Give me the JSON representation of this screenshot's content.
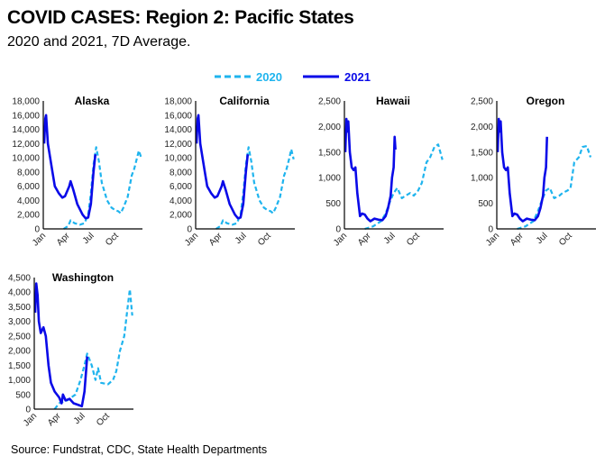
{
  "title": "COVID CASES: Region 2: Pacific States",
  "subtitle": "2020 and 2021, 7D Average.",
  "source": "Source: Fundstrat, CDC, State Health Departments",
  "legend": {
    "placement": "top-center",
    "items": [
      {
        "name": "2020",
        "color": "#1fb4ee",
        "style": "dashed"
      },
      {
        "name": "2021",
        "color": "#0a0ae8",
        "style": "solid"
      }
    ]
  },
  "chart_data": [
    {
      "type": "line",
      "title": "Alaska",
      "ylim": [
        0,
        18000
      ],
      "yticks": [
        "0",
        "2,000",
        "4,000",
        "6,000",
        "8,000",
        "10,000",
        "12,000",
        "14,000",
        "16,000",
        "18,000"
      ],
      "ytick_values": [
        0,
        2000,
        4000,
        6000,
        8000,
        10000,
        12000,
        14000,
        16000,
        18000
      ],
      "xticks": [
        "Jan",
        "Apr",
        "Jul",
        "Oct"
      ],
      "grid": false,
      "series": [
        {
          "name": "2020",
          "points": [
            [
              "03-15",
              0
            ],
            [
              "04-01",
              400
            ],
            [
              "04-10",
              1200
            ],
            [
              "04-25",
              800
            ],
            [
              "05-15",
              600
            ],
            [
              "06-01",
              800
            ],
            [
              "06-15",
              2000
            ],
            [
              "06-25",
              5000
            ],
            [
              "07-05",
              9000
            ],
            [
              "07-15",
              11500
            ],
            [
              "07-25",
              9500
            ],
            [
              "08-05",
              6500
            ],
            [
              "08-25",
              4000
            ],
            [
              "09-10",
              3000
            ],
            [
              "09-25",
              2600
            ],
            [
              "10-05",
              2500
            ],
            [
              "10-15",
              2200
            ],
            [
              "10-25",
              3000
            ],
            [
              "11-10",
              4500
            ],
            [
              "11-25",
              7500
            ],
            [
              "12-05",
              8500
            ],
            [
              "12-15",
              10000
            ],
            [
              "12-22",
              11000
            ],
            [
              "12-31",
              10000
            ]
          ]
        },
        {
          "name": "2021",
          "points": [
            [
              "01-01",
              12000
            ],
            [
              "01-05",
              15500
            ],
            [
              "01-08",
              16000
            ],
            [
              "01-15",
              12000
            ],
            [
              "02-01",
              8000
            ],
            [
              "02-10",
              6000
            ],
            [
              "02-25",
              5000
            ],
            [
              "03-10",
              4400
            ],
            [
              "03-20",
              4600
            ],
            [
              "04-05",
              6000
            ],
            [
              "04-10",
              6700
            ],
            [
              "04-20",
              5500
            ],
            [
              "05-05",
              3500
            ],
            [
              "05-25",
              2000
            ],
            [
              "06-05",
              1500
            ],
            [
              "06-15",
              1600
            ],
            [
              "06-25",
              3500
            ],
            [
              "07-05",
              8000
            ],
            [
              "07-12",
              10500
            ]
          ]
        }
      ]
    },
    {
      "type": "line",
      "title": "California",
      "ylim": [
        0,
        18000
      ],
      "yticks": [
        "0",
        "2,000",
        "4,000",
        "6,000",
        "8,000",
        "10,000",
        "12,000",
        "14,000",
        "16,000",
        "18,000"
      ],
      "ytick_values": [
        0,
        2000,
        4000,
        6000,
        8000,
        10000,
        12000,
        14000,
        16000,
        18000
      ],
      "xticks": [
        "Jan",
        "Apr",
        "Jul",
        "Oct"
      ],
      "grid": false,
      "series": [
        {
          "name": "2020",
          "points": [
            [
              "03-15",
              0
            ],
            [
              "04-01",
              400
            ],
            [
              "04-10",
              1200
            ],
            [
              "04-25",
              800
            ],
            [
              "05-15",
              600
            ],
            [
              "06-01",
              800
            ],
            [
              "06-15",
              2000
            ],
            [
              "06-25",
              5000
            ],
            [
              "07-05",
              9000
            ],
            [
              "07-15",
              11500
            ],
            [
              "07-25",
              9500
            ],
            [
              "08-05",
              6500
            ],
            [
              "08-25",
              4000
            ],
            [
              "09-10",
              3000
            ],
            [
              "09-25",
              2600
            ],
            [
              "10-05",
              2500
            ],
            [
              "10-15",
              2200
            ],
            [
              "10-25",
              3000
            ],
            [
              "11-10",
              4500
            ],
            [
              "11-25",
              7500
            ],
            [
              "12-05",
              8500
            ],
            [
              "12-15",
              10000
            ],
            [
              "12-22",
              11200
            ],
            [
              "12-31",
              9800
            ]
          ]
        },
        {
          "name": "2021",
          "points": [
            [
              "01-01",
              12000
            ],
            [
              "01-05",
              15500
            ],
            [
              "01-08",
              16000
            ],
            [
              "01-15",
              12000
            ],
            [
              "02-01",
              8000
            ],
            [
              "02-10",
              6000
            ],
            [
              "02-25",
              5000
            ],
            [
              "03-10",
              4400
            ],
            [
              "03-20",
              4600
            ],
            [
              "04-05",
              6000
            ],
            [
              "04-10",
              6700
            ],
            [
              "04-20",
              5500
            ],
            [
              "05-05",
              3500
            ],
            [
              "05-25",
              2000
            ],
            [
              "06-05",
              1500
            ],
            [
              "06-15",
              1600
            ],
            [
              "06-25",
              3500
            ],
            [
              "07-05",
              8000
            ],
            [
              "07-12",
              10500
            ]
          ]
        }
      ]
    },
    {
      "type": "line",
      "title": "Hawaii",
      "ylim": [
        0,
        2500
      ],
      "yticks": [
        "0",
        "500",
        "1,000",
        "1,500",
        "2,000",
        "2,500"
      ],
      "ytick_values": [
        0,
        500,
        1000,
        1500,
        2000,
        2500
      ],
      "xticks": [
        "Jan",
        "Apr",
        "Jul",
        "Oct"
      ],
      "grid": false,
      "series": [
        {
          "name": "2020",
          "points": [
            [
              "03-15",
              0
            ],
            [
              "04-15",
              50
            ],
            [
              "05-15",
              150
            ],
            [
              "06-01",
              300
            ],
            [
              "06-15",
              500
            ],
            [
              "07-01",
              700
            ],
            [
              "07-15",
              800
            ],
            [
              "08-01",
              600
            ],
            [
              "08-15",
              650
            ],
            [
              "09-01",
              700
            ],
            [
              "09-15",
              650
            ],
            [
              "10-01",
              750
            ],
            [
              "10-15",
              900
            ],
            [
              "11-01",
              1300
            ],
            [
              "11-15",
              1400
            ],
            [
              "12-01",
              1600
            ],
            [
              "12-15",
              1650
            ],
            [
              "12-31",
              1350
            ]
          ]
        },
        {
          "name": "2021",
          "points": [
            [
              "01-01",
              1500
            ],
            [
              "01-05",
              2150
            ],
            [
              "01-08",
              1900
            ],
            [
              "01-12",
              2100
            ],
            [
              "01-18",
              1500
            ],
            [
              "01-25",
              1200
            ],
            [
              "02-01",
              1150
            ],
            [
              "02-08",
              1200
            ],
            [
              "02-15",
              700
            ],
            [
              "02-25",
              250
            ],
            [
              "03-05",
              300
            ],
            [
              "03-15",
              280
            ],
            [
              "03-25",
              200
            ],
            [
              "04-05",
              150
            ],
            [
              "04-20",
              200
            ],
            [
              "05-05",
              180
            ],
            [
              "05-20",
              170
            ],
            [
              "06-01",
              250
            ],
            [
              "06-10",
              400
            ],
            [
              "06-20",
              650
            ],
            [
              "06-25",
              1000
            ],
            [
              "07-01",
              1200
            ],
            [
              "07-05",
              1800
            ],
            [
              "07-08",
              1550
            ]
          ]
        }
      ]
    },
    {
      "type": "line",
      "title": "Oregon",
      "ylim": [
        0,
        2500
      ],
      "yticks": [
        "0",
        "500",
        "1,000",
        "1,500",
        "2,000",
        "2,500"
      ],
      "ytick_values": [
        0,
        500,
        1000,
        1500,
        2000,
        2500
      ],
      "xticks": [
        "Jan",
        "Apr",
        "Jul",
        "Oct"
      ],
      "grid": false,
      "series": [
        {
          "name": "2020",
          "points": [
            [
              "03-15",
              0
            ],
            [
              "04-15",
              50
            ],
            [
              "05-15",
              150
            ],
            [
              "06-01",
              350
            ],
            [
              "06-15",
              550
            ],
            [
              "07-01",
              750
            ],
            [
              "07-15",
              800
            ],
            [
              "08-01",
              600
            ],
            [
              "08-20",
              650
            ],
            [
              "09-01",
              700
            ],
            [
              "09-20",
              750
            ],
            [
              "10-01",
              800
            ],
            [
              "10-15",
              1300
            ],
            [
              "11-01",
              1400
            ],
            [
              "11-15",
              1600
            ],
            [
              "12-01",
              1620
            ],
            [
              "12-15",
              1400
            ]
          ]
        },
        {
          "name": "2021",
          "points": [
            [
              "01-01",
              1500
            ],
            [
              "01-05",
              2150
            ],
            [
              "01-08",
              1900
            ],
            [
              "01-12",
              2100
            ],
            [
              "01-18",
              1500
            ],
            [
              "01-25",
              1200
            ],
            [
              "02-01",
              1150
            ],
            [
              "02-08",
              1200
            ],
            [
              "02-15",
              700
            ],
            [
              "02-25",
              250
            ],
            [
              "03-05",
              300
            ],
            [
              "03-15",
              280
            ],
            [
              "03-25",
              200
            ],
            [
              "04-05",
              150
            ],
            [
              "04-20",
              200
            ],
            [
              "05-05",
              180
            ],
            [
              "05-20",
              170
            ],
            [
              "06-01",
              250
            ],
            [
              "06-10",
              400
            ],
            [
              "06-20",
              650
            ],
            [
              "06-25",
              1000
            ],
            [
              "07-01",
              1200
            ],
            [
              "07-05",
              1800
            ]
          ]
        }
      ]
    },
    {
      "type": "line",
      "title": "Washington",
      "ylim": [
        0,
        4500
      ],
      "yticks": [
        "0",
        "500",
        "1,000",
        "1,500",
        "2,000",
        "2,500",
        "3,000",
        "3,500",
        "4,000",
        "4,500"
      ],
      "ytick_values": [
        0,
        500,
        1000,
        1500,
        2000,
        2500,
        3000,
        3500,
        4000,
        4500
      ],
      "xticks": [
        "Jan",
        "Apr",
        "Jul",
        "Oct"
      ],
      "grid": false,
      "series": [
        {
          "name": "2020",
          "points": [
            [
              "03-15",
              0
            ],
            [
              "04-01",
              200
            ],
            [
              "05-01",
              300
            ],
            [
              "06-01",
              500
            ],
            [
              "06-20",
              1000
            ],
            [
              "07-05",
              1500
            ],
            [
              "07-15",
              1900
            ],
            [
              "08-01",
              1500
            ],
            [
              "08-15",
              1000
            ],
            [
              "08-25",
              1400
            ],
            [
              "09-05",
              900
            ],
            [
              "10-01",
              850
            ],
            [
              "10-20",
              1000
            ],
            [
              "11-01",
              1300
            ],
            [
              "11-15",
              2000
            ],
            [
              "12-01",
              2500
            ],
            [
              "12-15",
              3600
            ],
            [
              "12-22",
              4100
            ],
            [
              "12-31",
              3200
            ]
          ]
        },
        {
          "name": "2021",
          "points": [
            [
              "01-01",
              3300
            ],
            [
              "01-05",
              4300
            ],
            [
              "01-10",
              3900
            ],
            [
              "01-15",
              3000
            ],
            [
              "01-22",
              2600
            ],
            [
              "02-01",
              2800
            ],
            [
              "02-10",
              2500
            ],
            [
              "02-20",
              1500
            ],
            [
              "03-01",
              900
            ],
            [
              "03-15",
              600
            ],
            [
              "04-01",
              400
            ],
            [
              "04-10",
              200
            ],
            [
              "04-15",
              500
            ],
            [
              "04-25",
              300
            ],
            [
              "05-10",
              350
            ],
            [
              "05-25",
              200
            ],
            [
              "06-10",
              150
            ],
            [
              "06-25",
              100
            ],
            [
              "07-05",
              600
            ],
            [
              "07-15",
              1800
            ]
          ]
        }
      ]
    }
  ]
}
